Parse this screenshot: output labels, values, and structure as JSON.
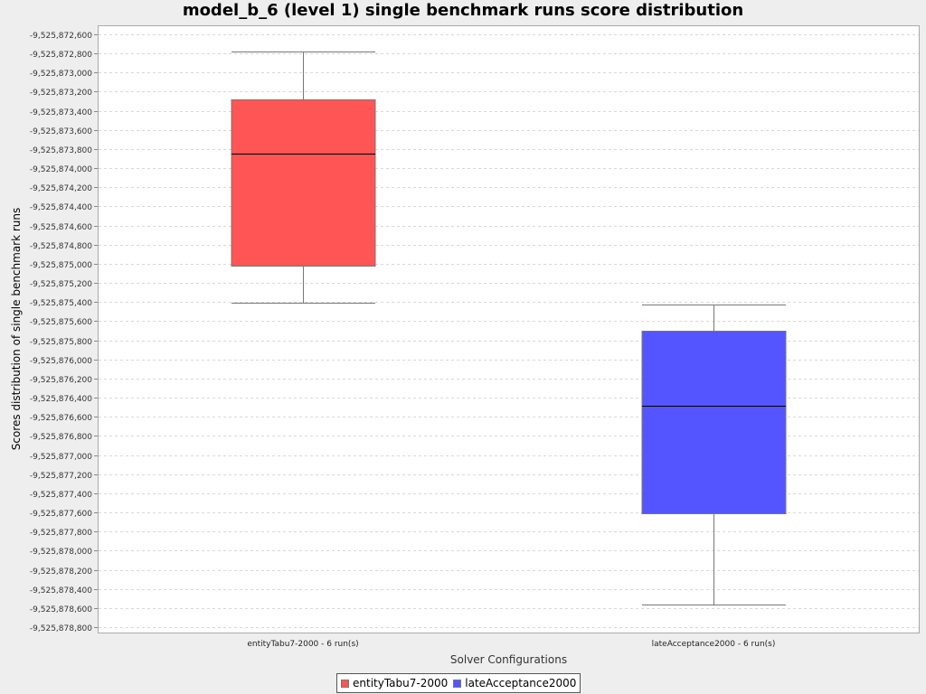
{
  "chart_data": {
    "type": "boxplot",
    "title": "model_b_6 (level 1) single benchmark runs score distribution",
    "xlabel": "Solver Configurations",
    "ylabel": "Scores distribution of single benchmark runs",
    "ylim": [
      -9525878800,
      -9525872600
    ],
    "yticks": [
      -9525872600,
      -9525872800,
      -9525873000,
      -9525873200,
      -9525873400,
      -9525873600,
      -9525873800,
      -9525874000,
      -9525874200,
      -9525874400,
      -9525874600,
      -9525874800,
      -9525875000,
      -9525875200,
      -9525875400,
      -9525875600,
      -9525875800,
      -9525876000,
      -9525876200,
      -9525876400,
      -9525876600,
      -9525876800,
      -9525877000,
      -9525877200,
      -9525877400,
      -9525877600,
      -9525877800,
      -9525878000,
      -9525878200,
      -9525878400,
      -9525878600,
      -9525878800
    ],
    "ytick_labels": [
      "-9,525,872,600",
      "-9,525,872,800",
      "-9,525,873,000",
      "-9,525,873,200",
      "-9,525,873,400",
      "-9,525,873,600",
      "-9,525,873,800",
      "-9,525,874,000",
      "-9,525,874,200",
      "-9,525,874,400",
      "-9,525,874,600",
      "-9,525,874,800",
      "-9,525,875,000",
      "-9,525,875,200",
      "-9,525,875,400",
      "-9,525,875,600",
      "-9,525,875,800",
      "-9,525,876,000",
      "-9,525,876,200",
      "-9,525,876,400",
      "-9,525,876,600",
      "-9,525,876,800",
      "-9,525,877,000",
      "-9,525,877,200",
      "-9,525,877,400",
      "-9,525,877,600",
      "-9,525,877,800",
      "-9,525,878,000",
      "-9,525,878,200",
      "-9,525,878,400",
      "-9,525,878,600",
      "-9,525,878,800"
    ],
    "grid": true,
    "legend_position": "bottom",
    "categories": [
      "entityTabu7-2000 - 6 run(s)",
      "lateAcceptance2000 - 6 run(s)"
    ],
    "series": [
      {
        "name": "entityTabu7-2000",
        "color": "#ff5555",
        "category_index": 0,
        "whisker_high": -9525872780,
        "q3": -9525873280,
        "median": -9525873850,
        "q1": -9525875020,
        "whisker_low": -9525875410
      },
      {
        "name": "lateAcceptance2000",
        "color": "#5555ff",
        "category_index": 1,
        "whisker_high": -9525875430,
        "q3": -9525875700,
        "median": -9525876480,
        "q1": -9525877610,
        "whisker_low": -9525878560
      }
    ]
  }
}
